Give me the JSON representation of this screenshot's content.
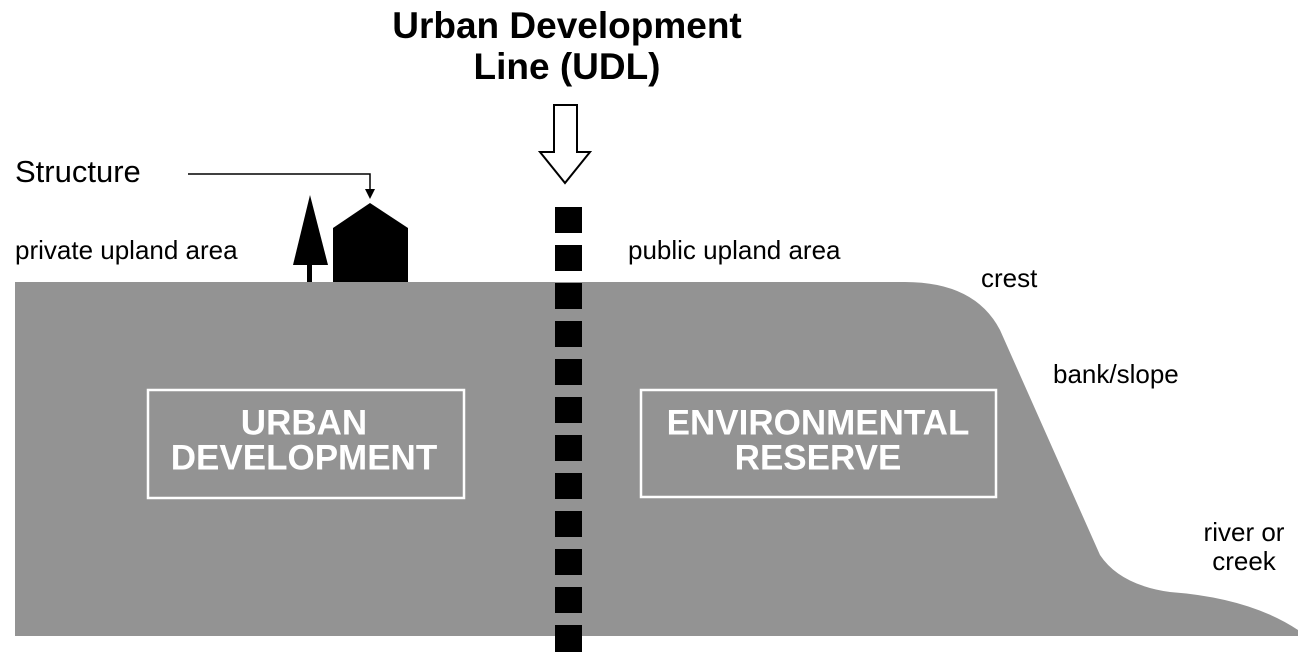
{
  "title": {
    "lines": [
      "Urban Development",
      "Line (UDL)"
    ]
  },
  "labels": {
    "structure": "Structure",
    "private_area": "private upland area",
    "public_area": "public upland area",
    "crest": "crest",
    "bank": "bank/slope",
    "river": {
      "lines": [
        "river or",
        "creek"
      ]
    }
  },
  "zones": [
    {
      "lines": [
        "URBAN",
        "DEVELOPMENT"
      ]
    },
    {
      "lines": [
        "ENVIRONMENTAL",
        "RESERVE"
      ]
    }
  ]
}
